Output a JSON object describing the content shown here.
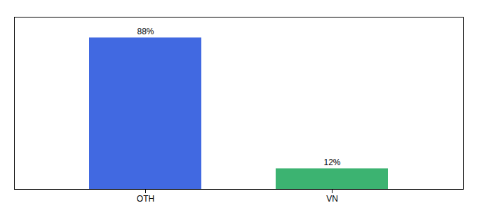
{
  "chart_data": {
    "type": "bar",
    "categories": [
      "OTH",
      "VN"
    ],
    "values": [
      88,
      12
    ],
    "value_labels": [
      "88%",
      "12%"
    ],
    "colors": [
      "#4169E1",
      "#3CB371"
    ],
    "ylim": [
      0,
      100
    ],
    "data_labels": true,
    "tick_labels": "x"
  }
}
